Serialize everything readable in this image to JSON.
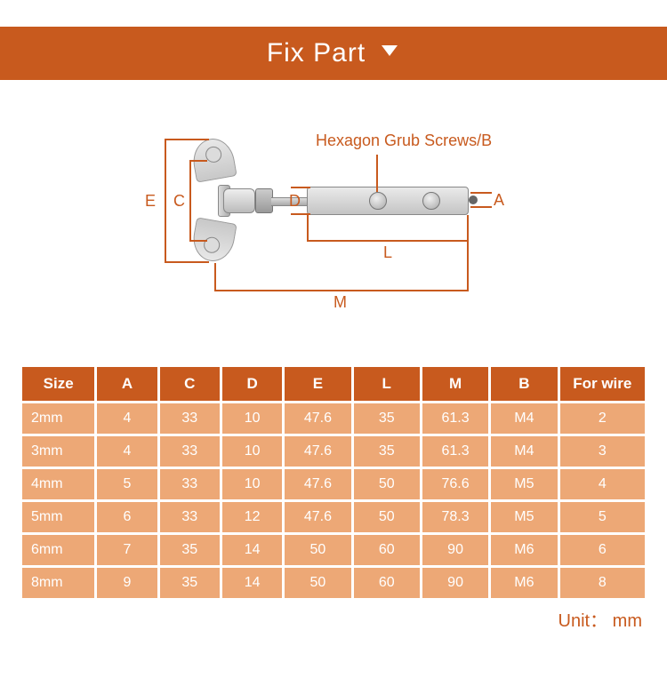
{
  "banner": {
    "title": "Fix Part"
  },
  "diagram": {
    "callout": "Hexagon Grub Screws/B",
    "labels": {
      "E": "E",
      "C": "C",
      "D": "D",
      "A": "A",
      "L": "L",
      "M": "M"
    },
    "colors": {
      "accent": "#c85a1e",
      "metal_light": "#eaeaea",
      "metal_dark": "#c4c4c4"
    }
  },
  "table": {
    "columns": [
      "Size",
      "A",
      "C",
      "D",
      "E",
      "L",
      "M",
      "B",
      "For wire"
    ],
    "rows": [
      [
        "2mm",
        "4",
        "33",
        "10",
        "47.6",
        "35",
        "61.3",
        "M4",
        "2"
      ],
      [
        "3mm",
        "4",
        "33",
        "10",
        "47.6",
        "35",
        "61.3",
        "M4",
        "3"
      ],
      [
        "4mm",
        "5",
        "33",
        "10",
        "47.6",
        "50",
        "76.6",
        "M5",
        "4"
      ],
      [
        "5mm",
        "6",
        "33",
        "12",
        "47.6",
        "50",
        "78.3",
        "M5",
        "5"
      ],
      [
        "6mm",
        "7",
        "35",
        "14",
        "50",
        "60",
        "90",
        "M6",
        "6"
      ],
      [
        "8mm",
        "9",
        "35",
        "14",
        "50",
        "60",
        "90",
        "M6",
        "8"
      ]
    ],
    "col_widths_pct": [
      12,
      10,
      10,
      10,
      11,
      11,
      11,
      11,
      14
    ],
    "header_bg": "#c85a1e",
    "cell_bg": "#eda876",
    "text_color": "#ffffff",
    "unit_label": "Unit： mm"
  }
}
